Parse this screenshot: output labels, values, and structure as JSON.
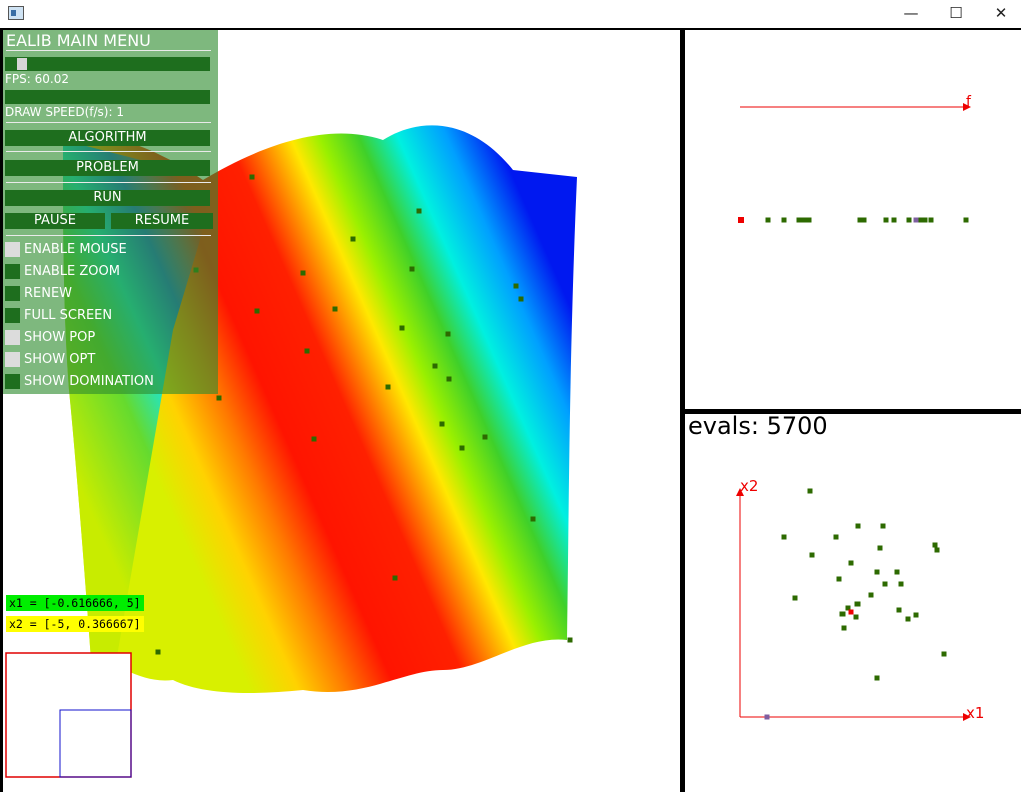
{
  "window": {
    "minimize_glyph": "—",
    "maximize_glyph": "☐",
    "close_glyph": "✕"
  },
  "menu": {
    "title": "EALIB MAIN MENU",
    "fps_label": "FPS: 60.02",
    "fps_slider_fraction": 0.05,
    "draw_speed_label": "DRAW SPEED(f/s): 1",
    "algorithm_label": "ALGORITHM",
    "problem_label": "PROBLEM",
    "run_label": "RUN",
    "pause_label": "PAUSE",
    "resume_label": "RESUME",
    "options": [
      {
        "label": "ENABLE MOUSE",
        "checked": true
      },
      {
        "label": "ENABLE ZOOM",
        "checked": false
      },
      {
        "label": "RENEW",
        "checked": false
      },
      {
        "label": "FULL SCREEN",
        "checked": false
      },
      {
        "label": "SHOW POP",
        "checked": true
      },
      {
        "label": "SHOW OPT",
        "checked": true
      },
      {
        "label": "SHOW DOMINATION",
        "checked": false
      }
    ]
  },
  "ranges": {
    "x1": "x1 = [-0.616666, 5]",
    "x2": "x2 = [-5, 0.366667]"
  },
  "objective_axis_label": "f",
  "evals_label": "evals: 5700",
  "decision_axis": {
    "x_label": "x1",
    "y_label": "x2"
  },
  "colors": {
    "population": "#2d6a00",
    "axis": "#ee0000",
    "optimum": "#ee0000",
    "highlight": "#7f5fa0"
  }
}
